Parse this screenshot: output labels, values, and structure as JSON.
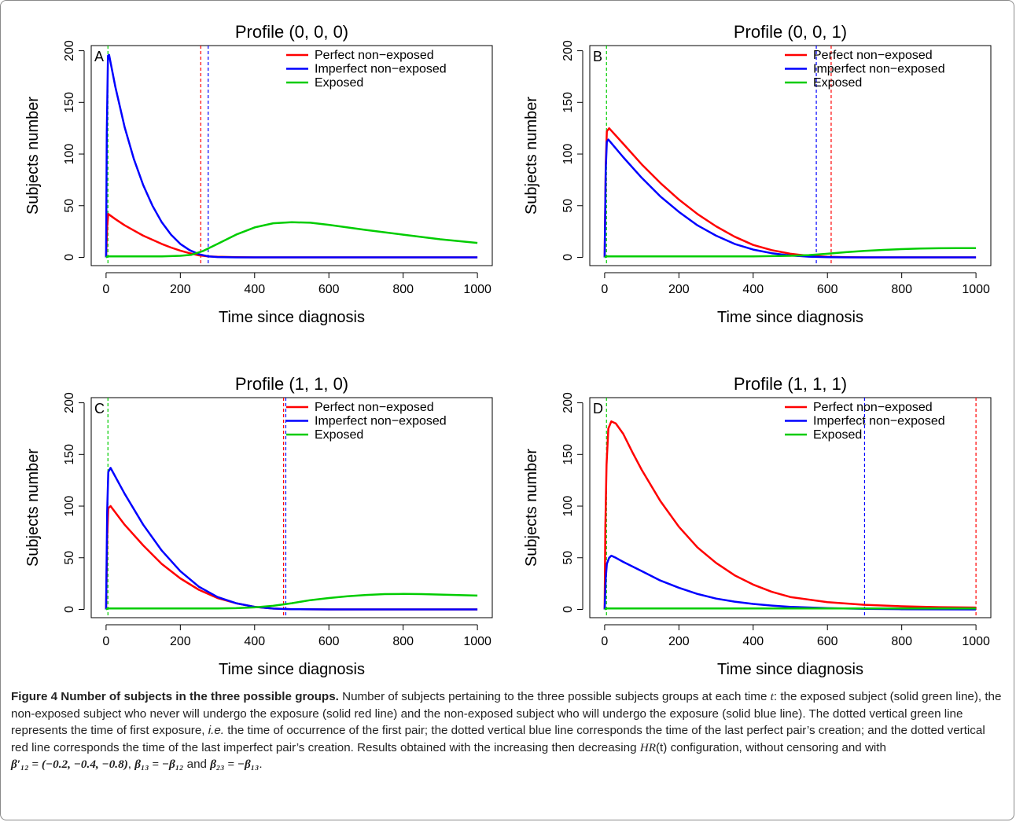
{
  "chart_data": [
    {
      "type": "line",
      "panel_letter": "A",
      "title": "Profile (0, 0, 0)",
      "xlabel": "Time since diagnosis",
      "ylabel": "Subjects number",
      "xlim": [
        -40,
        1040
      ],
      "ylim": [
        -8,
        205
      ],
      "x_ticks": [
        0,
        200,
        400,
        600,
        800,
        1000
      ],
      "y_ticks": [
        0,
        50,
        100,
        150,
        200
      ],
      "legend_position": "top-right",
      "series": [
        {
          "name": "Perfect non−exposed",
          "color": "#ff0000",
          "x": [
            0,
            3,
            6,
            25,
            50,
            75,
            100,
            125,
            150,
            175,
            200,
            225,
            250,
            275,
            300,
            350,
            400,
            500,
            600,
            700,
            800,
            900,
            1000
          ],
          "y": [
            0,
            30,
            42,
            37,
            31,
            26,
            21,
            17,
            13,
            9.5,
            6.5,
            4,
            2,
            1,
            0.5,
            0.2,
            0,
            0,
            0,
            0,
            0,
            0,
            0
          ]
        },
        {
          "name": "Imperfect non−exposed",
          "color": "#0000ff",
          "x": [
            0,
            2,
            5,
            8,
            25,
            50,
            75,
            100,
            125,
            150,
            175,
            200,
            225,
            250,
            275,
            300,
            350,
            400,
            500,
            600,
            700,
            800,
            900,
            1000
          ],
          "y": [
            0,
            120,
            195,
            196,
            165,
            126,
            95,
            70,
            50,
            34,
            22,
            13,
            7,
            3,
            1,
            0.3,
            0,
            0,
            0,
            0,
            0,
            0,
            0,
            0
          ]
        },
        {
          "name": "Exposed",
          "color": "#00cc00",
          "x": [
            0,
            5,
            50,
            100,
            150,
            200,
            230,
            260,
            300,
            350,
            400,
            450,
            500,
            550,
            600,
            700,
            800,
            900,
            1000
          ],
          "y": [
            0,
            1,
            1,
            1,
            1,
            1.5,
            2.5,
            6,
            13,
            22,
            29,
            33,
            34,
            33.5,
            31.5,
            26.5,
            22,
            17.5,
            14
          ]
        }
      ],
      "vlines": [
        {
          "x": 5,
          "color": "#00cc00",
          "label": "first exposure"
        },
        {
          "x": 255,
          "color": "#ff0000",
          "label": "last imperfect pair"
        },
        {
          "x": 275,
          "color": "#0000ff",
          "label": "last perfect pair"
        }
      ]
    },
    {
      "type": "line",
      "panel_letter": "B",
      "title": "Profile (0, 0, 1)",
      "xlabel": "Time since diagnosis",
      "ylabel": "Subjects number",
      "xlim": [
        -40,
        1040
      ],
      "ylim": [
        -8,
        205
      ],
      "x_ticks": [
        0,
        200,
        400,
        600,
        800,
        1000
      ],
      "y_ticks": [
        0,
        50,
        100,
        150,
        200
      ],
      "legend_position": "top-right",
      "series": [
        {
          "name": "Perfect non−exposed",
          "color": "#ff0000",
          "x": [
            0,
            3,
            6,
            12,
            50,
            100,
            150,
            200,
            250,
            300,
            350,
            400,
            450,
            500,
            550,
            600,
            650,
            700,
            800,
            900,
            1000
          ],
          "y": [
            0,
            90,
            122,
            125,
            110,
            90,
            72,
            56,
            42,
            30,
            20,
            12,
            7,
            3.5,
            1.5,
            0.6,
            0.2,
            0,
            0,
            0,
            0
          ]
        },
        {
          "name": "Imperfect non−exposed",
          "color": "#0000ff",
          "x": [
            0,
            3,
            6,
            10,
            50,
            100,
            150,
            200,
            250,
            300,
            350,
            400,
            450,
            500,
            550,
            600,
            650,
            700,
            800,
            900,
            1000
          ],
          "y": [
            0,
            85,
            112,
            114,
            97,
            77,
            59,
            44,
            31,
            21,
            13,
            7.5,
            4,
            1.8,
            0.7,
            0.2,
            0,
            0,
            0,
            0,
            0
          ]
        },
        {
          "name": "Exposed",
          "color": "#00cc00",
          "x": [
            0,
            5,
            100,
            200,
            300,
            400,
            450,
            500,
            550,
            600,
            650,
            700,
            750,
            800,
            850,
            900,
            950,
            1000
          ],
          "y": [
            0,
            1,
            1,
            1,
            1,
            1,
            1.2,
            1.5,
            2.2,
            3.5,
            5,
            6.2,
            7.2,
            8,
            8.5,
            8.8,
            9,
            9
          ]
        }
      ],
      "vlines": [
        {
          "x": 5,
          "color": "#00cc00",
          "label": "first exposure"
        },
        {
          "x": 570,
          "color": "#0000ff",
          "label": "last perfect pair"
        },
        {
          "x": 610,
          "color": "#ff0000",
          "label": "last imperfect pair"
        }
      ]
    },
    {
      "type": "line",
      "panel_letter": "C",
      "title": "Profile (1, 1, 0)",
      "xlabel": "Time since diagnosis",
      "ylabel": "Subjects number",
      "xlim": [
        -40,
        1040
      ],
      "ylim": [
        -8,
        205
      ],
      "x_ticks": [
        0,
        200,
        400,
        600,
        800,
        1000
      ],
      "y_ticks": [
        0,
        50,
        100,
        150,
        200
      ],
      "legend_position": "top-right",
      "series": [
        {
          "name": "Perfect non−exposed",
          "color": "#ff0000",
          "x": [
            0,
            3,
            6,
            12,
            50,
            100,
            150,
            200,
            250,
            300,
            350,
            400,
            450,
            500,
            600,
            700,
            800,
            900,
            1000
          ],
          "y": [
            0,
            70,
            98,
            100,
            82,
            62,
            44,
            30,
            19,
            11,
            6,
            2.5,
            0.8,
            0.2,
            0,
            0,
            0,
            0,
            0
          ]
        },
        {
          "name": "Imperfect non−exposed",
          "color": "#0000ff",
          "x": [
            0,
            3,
            6,
            12,
            50,
            100,
            150,
            200,
            250,
            300,
            350,
            400,
            450,
            500,
            600,
            700,
            800,
            900,
            1000
          ],
          "y": [
            0,
            95,
            133,
            137,
            112,
            82,
            57,
            37,
            22,
            12,
            6,
            2.5,
            0.8,
            0.2,
            0,
            0,
            0,
            0,
            0
          ]
        },
        {
          "name": "Exposed",
          "color": "#00cc00",
          "x": [
            0,
            5,
            100,
            200,
            300,
            350,
            400,
            450,
            500,
            550,
            600,
            650,
            700,
            750,
            800,
            850,
            900,
            950,
            1000
          ],
          "y": [
            0,
            1,
            1,
            1,
            1,
            1.2,
            2,
            3.5,
            6,
            9,
            11,
            12.8,
            14,
            14.8,
            15,
            14.8,
            14.4,
            13.9,
            13.4
          ]
        }
      ],
      "vlines": [
        {
          "x": 5,
          "color": "#00cc00",
          "label": "first exposure"
        },
        {
          "x": 478,
          "color": "#ff0000",
          "label": "last imperfect pair"
        },
        {
          "x": 484,
          "color": "#0000ff",
          "label": "last perfect pair"
        }
      ]
    },
    {
      "type": "line",
      "panel_letter": "D",
      "title": "Profile (1, 1, 1)",
      "xlabel": "Time since diagnosis",
      "ylabel": "Subjects number",
      "xlim": [
        -40,
        1040
      ],
      "ylim": [
        -8,
        205
      ],
      "x_ticks": [
        0,
        200,
        400,
        600,
        800,
        1000
      ],
      "y_ticks": [
        0,
        50,
        100,
        150,
        200
      ],
      "legend_position": "top-right",
      "series": [
        {
          "name": "Perfect non−exposed",
          "color": "#ff0000",
          "x": [
            0,
            2,
            5,
            10,
            18,
            30,
            50,
            75,
            100,
            150,
            200,
            250,
            300,
            350,
            400,
            450,
            500,
            600,
            700,
            800,
            900,
            1000
          ],
          "y": [
            0,
            80,
            140,
            175,
            182,
            180,
            170,
            152,
            135,
            105,
            80,
            60,
            45,
            33,
            24,
            17,
            12,
            7,
            4.5,
            3,
            2.2,
            1.8
          ]
        },
        {
          "name": "Imperfect non−exposed",
          "color": "#0000ff",
          "x": [
            0,
            3,
            6,
            12,
            18,
            30,
            50,
            100,
            150,
            200,
            250,
            300,
            350,
            400,
            450,
            500,
            600,
            700,
            800,
            900,
            1000
          ],
          "y": [
            0,
            30,
            44,
            50,
            52,
            50,
            46,
            37,
            28,
            21,
            15,
            10.5,
            7.5,
            5.3,
            3.7,
            2.5,
            1.2,
            0.5,
            0.2,
            0.1,
            0
          ]
        },
        {
          "name": "Exposed",
          "color": "#00cc00",
          "x": [
            0,
            5,
            200,
            400,
            600,
            800,
            1000
          ],
          "y": [
            0,
            1,
            1,
            1,
            1,
            1,
            1
          ]
        }
      ],
      "vlines": [
        {
          "x": 5,
          "color": "#00cc00",
          "label": "first exposure"
        },
        {
          "x": 700,
          "color": "#0000ff",
          "label": "last perfect pair"
        },
        {
          "x": 1000,
          "color": "#ff0000",
          "label": "last imperfect pair"
        }
      ]
    }
  ],
  "caption": {
    "label": "Figure 4 Number of subjects in the three possible groups.",
    "p1": " Number of subjects pertaining to the three possible subjects groups at each time ",
    "t": "t",
    "p2": ": the exposed subject (solid green line), the non-exposed subject who never will undergo the exposure (solid red line) and the non-exposed subject who will undergo the exposure (solid blue line). The dotted vertical green line represents the time of first exposure, ",
    "ie": "i.e.",
    "p3": " the time of occurrence of the first pair; the dotted vertical blue line corresponds the time of the last perfect pair’s creation; and the dotted vertical red line corresponds the time of the last imperfect pair’s creation. Results obtained with the increasing then decreasing ",
    "hr": "HR",
    "hr_arg": "(t)",
    "p4": " configuration, without censoring and with",
    "beta12_eq": "β′₁₂ = (−0.2, −0.4, −0.8)",
    "sep1": ", ",
    "beta13_eq": "β₁₃ = −β₁₂",
    "and": " and ",
    "beta23_eq": "β₂₃ = −β₁₃",
    "end": "."
  }
}
